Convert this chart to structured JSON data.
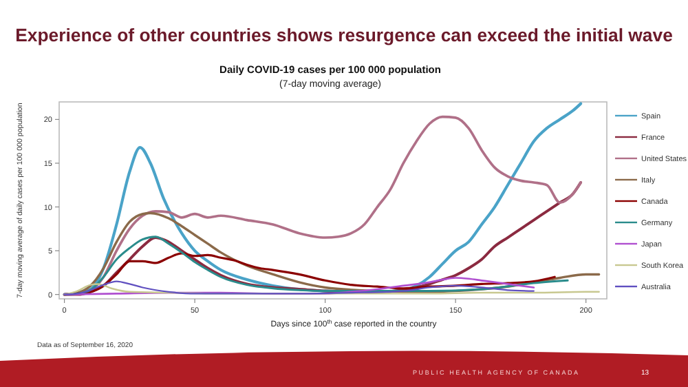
{
  "chart_data": {
    "type": "line",
    "title": "Experience of other countries shows resurgence can exceed the initial wave",
    "subtitle": "Daily COVID-19 cases per 100 000 population",
    "xlabel": "Days since 100$^{th}$ case reported in the country",
    "ylabel": "7-day moving average of daily cases per 100 000 population",
    "annotations": [
      "(7-day moving average)",
      "Data as of September 16, 2020",
      "PUBLIC HEALTH AGENCY OF CANADA",
      "13"
    ],
    "xlim": [
      -2,
      208
    ],
    "ylim": [
      -0.5,
      22
    ],
    "xticks": [
      0,
      50,
      100,
      150,
      200
    ],
    "yticks": [
      0,
      5,
      10,
      15,
      20
    ],
    "grid": false,
    "legend": "right",
    "marker": "none",
    "line_style": "solid",
    "series": [
      {
        "name": "Spain",
        "color": "#4aa3c8",
        "x": [
          0,
          5,
          10,
          15,
          20,
          25,
          29,
          33,
          38,
          45,
          50,
          55,
          60,
          70,
          80,
          90,
          100,
          110,
          120,
          130,
          135,
          140,
          145,
          150,
          155,
          160,
          165,
          170,
          175,
          180,
          185,
          190,
          195,
          198
        ],
        "values": [
          0,
          0.1,
          0.6,
          3,
          8,
          14,
          16.8,
          15,
          11,
          7,
          5,
          3.8,
          2.8,
          1.7,
          1,
          0.6,
          0.4,
          0.3,
          0.3,
          0.5,
          1,
          2,
          3.5,
          5,
          6,
          8,
          10,
          12.5,
          15,
          17.5,
          19,
          20,
          21,
          21.8
        ]
      },
      {
        "name": "France",
        "color": "#8b2a40",
        "x": [
          0,
          5,
          10,
          15,
          20,
          25,
          30,
          35,
          40,
          45,
          50,
          55,
          60,
          70,
          80,
          90,
          100,
          110,
          120,
          130,
          135,
          140,
          145,
          150,
          155,
          160,
          165,
          170,
          175,
          180,
          185,
          190,
          195,
          198
        ],
        "values": [
          0,
          0,
          0.3,
          1,
          2.5,
          4,
          5.5,
          6.5,
          6,
          5,
          4,
          3,
          2.2,
          1.2,
          0.8,
          0.6,
          0.4,
          0.3,
          0.3,
          0.5,
          0.8,
          1.2,
          1.7,
          2.2,
          3,
          4,
          5.5,
          6.5,
          7.5,
          8.5,
          9.5,
          10.5,
          11.5,
          12.8
        ]
      },
      {
        "name": "United States",
        "color": "#b07088",
        "x": [
          0,
          5,
          10,
          15,
          20,
          25,
          30,
          35,
          40,
          45,
          50,
          55,
          60,
          70,
          80,
          90,
          100,
          105,
          110,
          115,
          120,
          125,
          130,
          135,
          140,
          145,
          150,
          155,
          160,
          165,
          170,
          175,
          180,
          185,
          190,
          195,
          198
        ],
        "values": [
          0,
          0.1,
          0.5,
          2,
          5,
          7.5,
          9,
          9.5,
          9.4,
          8.8,
          9.2,
          8.8,
          9,
          8.5,
          8,
          7,
          6.5,
          6.6,
          7,
          8,
          10,
          12,
          15,
          17.5,
          19.5,
          20.3,
          20.2,
          19,
          16.5,
          14.5,
          13.5,
          13,
          12.8,
          12.5,
          10.5,
          11.5,
          12.8
        ]
      },
      {
        "name": "Italy",
        "color": "#8b6a4a",
        "x": [
          0,
          5,
          10,
          15,
          20,
          25,
          30,
          33,
          40,
          45,
          50,
          55,
          60,
          70,
          80,
          90,
          100,
          120,
          140,
          150,
          160,
          170,
          180,
          190,
          200,
          205
        ],
        "values": [
          0,
          0.2,
          1,
          3,
          6,
          8.3,
          9.2,
          9.3,
          8.7,
          7.8,
          6.8,
          5.8,
          4.8,
          3.3,
          2.3,
          1.4,
          0.8,
          0.4,
          0.3,
          0.4,
          0.6,
          0.9,
          1.4,
          1.9,
          2.3,
          2.3
        ]
      },
      {
        "name": "Canada",
        "color": "#8b0000",
        "x": [
          0,
          10,
          15,
          20,
          25,
          30,
          35,
          40,
          45,
          50,
          55,
          60,
          65,
          70,
          75,
          80,
          90,
          100,
          110,
          120,
          130,
          140,
          150,
          160,
          170,
          180,
          188
        ],
        "values": [
          0,
          0.3,
          1,
          2.3,
          3.8,
          3.8,
          3.6,
          4.2,
          4.7,
          4.4,
          4.5,
          4.2,
          3.9,
          3.4,
          3,
          2.8,
          2.3,
          1.6,
          1.1,
          0.9,
          0.7,
          0.9,
          1,
          1.2,
          1.3,
          1.5,
          2
        ]
      },
      {
        "name": "Germany",
        "color": "#2a8c8c",
        "x": [
          0,
          5,
          10,
          15,
          20,
          25,
          30,
          35,
          40,
          45,
          50,
          55,
          60,
          70,
          80,
          90,
          100,
          120,
          140,
          160,
          180,
          193
        ],
        "values": [
          0,
          0.1,
          0.5,
          2,
          4,
          5.3,
          6.3,
          6.6,
          5.8,
          4.8,
          3.7,
          2.8,
          2,
          1.1,
          0.7,
          0.5,
          0.4,
          0.4,
          0.4,
          0.6,
          1.3,
          1.6
        ]
      },
      {
        "name": "Japan",
        "color": "#b050d0",
        "x": [
          0,
          20,
          40,
          60,
          80,
          100,
          110,
          120,
          130,
          140,
          145,
          150,
          155,
          160,
          170,
          180
        ],
        "values": [
          0,
          0.1,
          0.2,
          0.2,
          0.1,
          0.1,
          0.3,
          0.6,
          1,
          1.4,
          1.7,
          1.9,
          1.8,
          1.6,
          1.2,
          0.8
        ]
      },
      {
        "name": "South Korea",
        "color": "#c8c890",
        "x": [
          0,
          5,
          10,
          13,
          18,
          25,
          40,
          60,
          80,
          100,
          120,
          140,
          160,
          180,
          200,
          205
        ],
        "values": [
          0,
          0.4,
          1.1,
          1.2,
          0.7,
          0.3,
          0.2,
          0.1,
          0.1,
          0.1,
          0.1,
          0.1,
          0.2,
          0.2,
          0.3,
          0.3
        ]
      },
      {
        "name": "Australia",
        "color": "#6050c0",
        "x": [
          0,
          5,
          10,
          15,
          20,
          25,
          30,
          40,
          50,
          70,
          90,
          110,
          130,
          140,
          150,
          160,
          170,
          180
        ],
        "values": [
          0,
          0.1,
          0.5,
          1.1,
          1.5,
          1.2,
          0.8,
          0.3,
          0.1,
          0.1,
          0.1,
          0.2,
          0.4,
          0.8,
          1,
          0.8,
          0.5,
          0.4
        ]
      }
    ]
  }
}
